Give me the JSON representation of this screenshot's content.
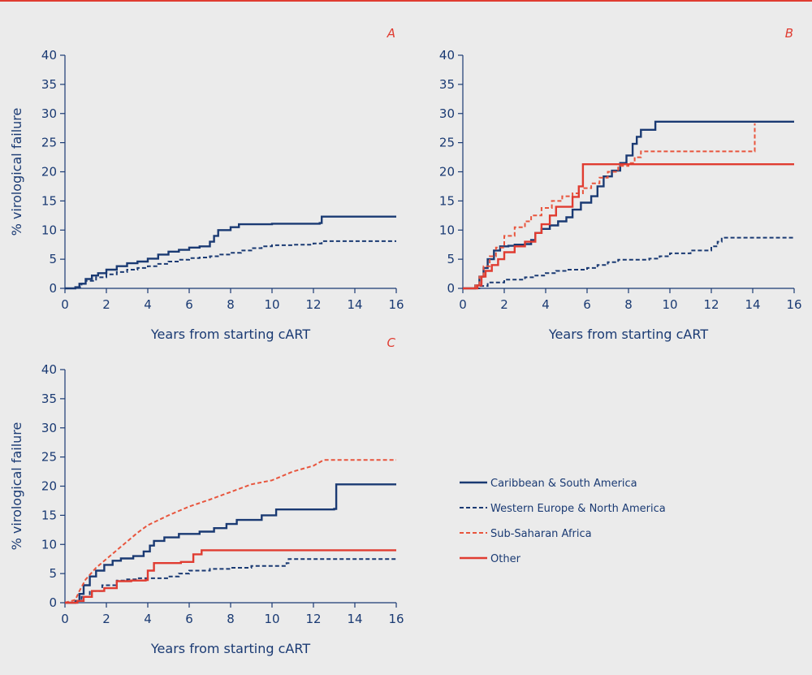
{
  "chart_data": [
    {
      "type": "line",
      "panel": "A",
      "xlabel": "Years from starting cART",
      "ylabel": "% virological failure",
      "xlim": [
        0,
        16
      ],
      "ylim": [
        0,
        40
      ],
      "xticks": [
        0,
        2,
        4,
        6,
        8,
        10,
        12,
        14,
        16
      ],
      "yticks": [
        0,
        5,
        10,
        15,
        20,
        25,
        30,
        35,
        40
      ],
      "grid": false,
      "series": [
        {
          "name": "Caribbean & South America",
          "color": "#1a3a73",
          "dash": "solid",
          "step": true,
          "points": [
            [
              0,
              0
            ],
            [
              0.5,
              0.2
            ],
            [
              0.7,
              0.8
            ],
            [
              1,
              1.6
            ],
            [
              1.3,
              2.2
            ],
            [
              1.6,
              2.6
            ],
            [
              2,
              3.2
            ],
            [
              2.5,
              3.8
            ],
            [
              3,
              4.3
            ],
            [
              3.5,
              4.6
            ],
            [
              4,
              5.1
            ],
            [
              4.5,
              5.8
            ],
            [
              5,
              6.3
            ],
            [
              5.5,
              6.6
            ],
            [
              6,
              7.0
            ],
            [
              6.5,
              7.2
            ],
            [
              7.0,
              8.0
            ],
            [
              7.2,
              9.0
            ],
            [
              7.4,
              10.0
            ],
            [
              8,
              10.5
            ],
            [
              8.4,
              11.0
            ],
            [
              10,
              11.1
            ],
            [
              12.3,
              11.2
            ],
            [
              12.4,
              12.3
            ],
            [
              16,
              12.3
            ]
          ]
        },
        {
          "name": "Western Europe & North America",
          "color": "#1a3a73",
          "dash": "dashed",
          "step": true,
          "points": [
            [
              0,
              0
            ],
            [
              0.5,
              0.2
            ],
            [
              0.8,
              0.8
            ],
            [
              1,
              1.3
            ],
            [
              1.5,
              1.9
            ],
            [
              2,
              2.4
            ],
            [
              2.5,
              2.8
            ],
            [
              3,
              3.2
            ],
            [
              3.5,
              3.5
            ],
            [
              4,
              3.8
            ],
            [
              4.5,
              4.2
            ],
            [
              5,
              4.6
            ],
            [
              5.5,
              4.9
            ],
            [
              6,
              5.2
            ],
            [
              6.5,
              5.3
            ],
            [
              7,
              5.5
            ],
            [
              7.5,
              5.8
            ],
            [
              8,
              6.1
            ],
            [
              8.5,
              6.5
            ],
            [
              9,
              6.9
            ],
            [
              9.5,
              7.2
            ],
            [
              10,
              7.4
            ],
            [
              11,
              7.5
            ],
            [
              12,
              7.7
            ],
            [
              12.4,
              8.1
            ],
            [
              16,
              8.1
            ]
          ]
        }
      ]
    },
    {
      "type": "line",
      "panel": "B",
      "xlabel": "Years from starting cART",
      "ylabel": "",
      "xlim": [
        0,
        16
      ],
      "ylim": [
        0,
        40
      ],
      "xticks": [
        0,
        2,
        4,
        6,
        8,
        10,
        12,
        14,
        16
      ],
      "yticks": [
        0,
        5,
        10,
        15,
        20,
        25,
        30,
        35,
        40
      ],
      "grid": false,
      "series": [
        {
          "name": "Caribbean & South America",
          "color": "#1a3a73",
          "dash": "solid",
          "step": true,
          "points": [
            [
              0,
              0
            ],
            [
              0.6,
              0.5
            ],
            [
              0.8,
              2.0
            ],
            [
              1,
              3.5
            ],
            [
              1.2,
              5.0
            ],
            [
              1.5,
              6.5
            ],
            [
              1.8,
              7.2
            ],
            [
              2.2,
              7.3
            ],
            [
              2.5,
              7.5
            ],
            [
              3.0,
              7.6
            ],
            [
              3.3,
              8.3
            ],
            [
              3.5,
              9.5
            ],
            [
              3.8,
              10.2
            ],
            [
              4.2,
              10.8
            ],
            [
              4.6,
              11.5
            ],
            [
              5.0,
              12.2
            ],
            [
              5.3,
              13.5
            ],
            [
              5.7,
              14.7
            ],
            [
              6.2,
              15.8
            ],
            [
              6.5,
              17.5
            ],
            [
              6.8,
              19.2
            ],
            [
              7.2,
              20.2
            ],
            [
              7.6,
              21.5
            ],
            [
              7.9,
              22.8
            ],
            [
              8.2,
              24.8
            ],
            [
              8.4,
              26.0
            ],
            [
              8.6,
              27.2
            ],
            [
              9.3,
              28.6
            ],
            [
              16,
              28.6
            ]
          ]
        },
        {
          "name": "Western Europe & North America",
          "color": "#1a3a73",
          "dash": "dashed",
          "step": true,
          "points": [
            [
              0,
              0
            ],
            [
              0.8,
              0.4
            ],
            [
              1.2,
              1.0
            ],
            [
              2,
              1.5
            ],
            [
              3,
              1.9
            ],
            [
              3.5,
              2.2
            ],
            [
              4,
              2.6
            ],
            [
              4.5,
              3.0
            ],
            [
              5,
              3.2
            ],
            [
              6,
              3.5
            ],
            [
              6.5,
              4.0
            ],
            [
              7,
              4.5
            ],
            [
              7.5,
              4.9
            ],
            [
              9,
              5.1
            ],
            [
              9.5,
              5.5
            ],
            [
              10,
              6.0
            ],
            [
              11,
              6.5
            ],
            [
              12,
              7.2
            ],
            [
              12.3,
              8.0
            ],
            [
              12.5,
              8.7
            ],
            [
              16,
              8.7
            ]
          ]
        },
        {
          "name": "Sub-Saharan Africa",
          "color": "#e8553d",
          "dash": "dashed",
          "step": true,
          "points": [
            [
              0,
              0
            ],
            [
              0.6,
              0.5
            ],
            [
              0.8,
              2.0
            ],
            [
              1,
              3.8
            ],
            [
              1.3,
              5.5
            ],
            [
              1.6,
              7.0
            ],
            [
              2,
              9.0
            ],
            [
              2.5,
              10.5
            ],
            [
              3,
              11.5
            ],
            [
              3.3,
              12.5
            ],
            [
              3.8,
              13.8
            ],
            [
              4.3,
              15.0
            ],
            [
              4.8,
              15.8
            ],
            [
              5.3,
              16.3
            ],
            [
              5.8,
              17.2
            ],
            [
              6.2,
              18.0
            ],
            [
              6.6,
              19.0
            ],
            [
              7.0,
              20.0
            ],
            [
              7.5,
              21.0
            ],
            [
              8,
              21.5
            ],
            [
              8.3,
              22.5
            ],
            [
              8.6,
              23.5
            ],
            [
              14,
              23.5
            ],
            [
              14.1,
              28.3
            ]
          ]
        },
        {
          "name": "Other",
          "color": "#e03c31",
          "dash": "solid",
          "step": true,
          "points": [
            [
              0,
              0
            ],
            [
              0.7,
              0.5
            ],
            [
              0.9,
              2.0
            ],
            [
              1.1,
              3.0
            ],
            [
              1.4,
              4.0
            ],
            [
              1.7,
              5.0
            ],
            [
              2.0,
              6.2
            ],
            [
              2.5,
              7.2
            ],
            [
              3.0,
              8.0
            ],
            [
              3.5,
              9.5
            ],
            [
              3.8,
              11.0
            ],
            [
              4.2,
              12.5
            ],
            [
              4.5,
              14.0
            ],
            [
              5.3,
              15.7
            ],
            [
              5.6,
              17.5
            ],
            [
              5.8,
              21.3
            ],
            [
              16,
              21.3
            ]
          ]
        }
      ]
    },
    {
      "type": "line",
      "panel": "C",
      "xlabel": "Years from starting cART",
      "ylabel": "% virological failure",
      "xlim": [
        0,
        16
      ],
      "ylim": [
        0,
        40
      ],
      "xticks": [
        0,
        2,
        4,
        6,
        8,
        10,
        12,
        14,
        16
      ],
      "yticks": [
        0,
        5,
        10,
        15,
        20,
        25,
        30,
        35,
        40
      ],
      "grid": false,
      "series": [
        {
          "name": "Caribbean & South America",
          "color": "#1a3a73",
          "dash": "solid",
          "step": true,
          "points": [
            [
              0,
              0
            ],
            [
              0.5,
              0.3
            ],
            [
              0.7,
              1.5
            ],
            [
              0.9,
              3.0
            ],
            [
              1.2,
              4.5
            ],
            [
              1.5,
              5.5
            ],
            [
              1.9,
              6.5
            ],
            [
              2.3,
              7.2
            ],
            [
              2.7,
              7.6
            ],
            [
              3.3,
              8.0
            ],
            [
              3.8,
              8.8
            ],
            [
              4.1,
              9.8
            ],
            [
              4.3,
              10.6
            ],
            [
              4.8,
              11.2
            ],
            [
              5.5,
              11.8
            ],
            [
              6.5,
              12.2
            ],
            [
              7.2,
              12.8
            ],
            [
              7.8,
              13.5
            ],
            [
              8.3,
              14.2
            ],
            [
              9.5,
              15.0
            ],
            [
              10.2,
              16.0
            ],
            [
              13.0,
              16.1
            ],
            [
              13.1,
              20.3
            ],
            [
              16,
              20.3
            ]
          ]
        },
        {
          "name": "Western Europe & North America",
          "color": "#1a3a73",
          "dash": "dashed",
          "step": true,
          "points": [
            [
              0,
              0
            ],
            [
              0.6,
              0.3
            ],
            [
              0.8,
              1.0
            ],
            [
              1.2,
              2.0
            ],
            [
              1.8,
              3.0
            ],
            [
              2.5,
              3.8
            ],
            [
              3,
              4.0
            ],
            [
              3.5,
              4.2
            ],
            [
              5,
              4.5
            ],
            [
              5.5,
              5.0
            ],
            [
              6,
              5.5
            ],
            [
              7,
              5.8
            ],
            [
              8,
              6.0
            ],
            [
              9,
              6.3
            ],
            [
              10.7,
              6.8
            ],
            [
              10.8,
              7.5
            ],
            [
              16,
              7.5
            ]
          ]
        },
        {
          "name": "Sub-Saharan Africa",
          "color": "#e8553d",
          "dash": "dashed",
          "step": false,
          "points": [
            [
              0,
              0
            ],
            [
              0.5,
              0.5
            ],
            [
              0.7,
              2.0
            ],
            [
              1,
              4.0
            ],
            [
              1.5,
              6.0
            ],
            [
              2,
              7.5
            ],
            [
              2.5,
              9.0
            ],
            [
              3,
              10.5
            ],
            [
              3.5,
              12.0
            ],
            [
              4,
              13.3
            ],
            [
              5,
              15.0
            ],
            [
              6,
              16.5
            ],
            [
              7,
              17.7
            ],
            [
              8,
              19.0
            ],
            [
              9,
              20.3
            ],
            [
              10,
              21.0
            ],
            [
              11,
              22.5
            ],
            [
              12,
              23.5
            ],
            [
              12.5,
              24.5
            ],
            [
              16,
              24.5
            ]
          ]
        },
        {
          "name": "Other",
          "color": "#e03c31",
          "dash": "solid",
          "step": true,
          "points": [
            [
              0,
              0
            ],
            [
              0.6,
              0.3
            ],
            [
              0.9,
              1.0
            ],
            [
              1.3,
              2.0
            ],
            [
              1.9,
              2.5
            ],
            [
              2.5,
              3.7
            ],
            [
              3.2,
              3.8
            ],
            [
              3.9,
              3.9
            ],
            [
              4.0,
              5.5
            ],
            [
              4.3,
              6.8
            ],
            [
              5.6,
              7.0
            ],
            [
              6.2,
              8.3
            ],
            [
              6.6,
              9.0
            ],
            [
              16,
              9.0
            ]
          ]
        }
      ]
    }
  ],
  "legend": {
    "placement": "right of panel C",
    "items": [
      {
        "label": "Caribbean & South America",
        "color": "#1a3a73",
        "dash": "solid"
      },
      {
        "label": "Western Europe & North America",
        "color": "#1a3a73",
        "dash": "dashed"
      },
      {
        "label": "Sub-Saharan Africa",
        "color": "#e8553d",
        "dash": "dashed"
      },
      {
        "label": "Other",
        "color": "#e03c31",
        "dash": "solid"
      }
    ]
  },
  "colors": {
    "background": "#ebebeb",
    "axis": "#1a3a73",
    "accent_rule": "#e03c31"
  }
}
